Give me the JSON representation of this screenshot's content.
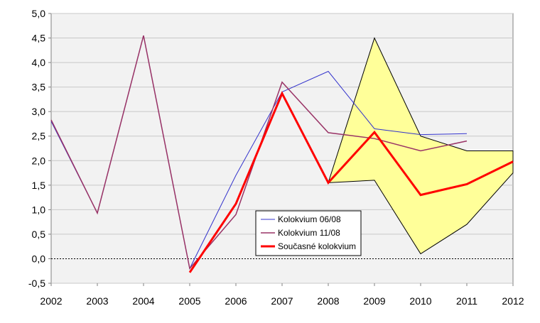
{
  "chart_data": {
    "type": "line",
    "title": "",
    "xlabel": "",
    "ylabel": "",
    "categories": [
      "2002",
      "2003",
      "2004",
      "2005",
      "2006",
      "2007",
      "2008",
      "2009",
      "2010",
      "2011",
      "2012"
    ],
    "ylim": [
      -0.5,
      5.0
    ],
    "ytick_step": 0.5,
    "decimal_separator": ",",
    "grid": "horizontal, plot area shaded light gray",
    "legend_position": "center-bottom, inside plot",
    "series": [
      {
        "name": "Kolokvium 06/08",
        "color": "#3333cc",
        "width": 1,
        "values": [
          2.8,
          0.93,
          4.55,
          -0.2,
          1.7,
          3.4,
          3.82,
          2.65,
          2.53,
          2.55,
          null
        ]
      },
      {
        "name": "Kolokvium 11/08",
        "color": "#993366",
        "width": 1.5,
        "values": [
          2.83,
          0.93,
          4.55,
          -0.2,
          0.9,
          3.6,
          2.57,
          2.45,
          2.2,
          2.4,
          null
        ]
      },
      {
        "name": "Současné kolokvium",
        "color": "#ff0000",
        "width": 3,
        "values": [
          null,
          null,
          null,
          -0.28,
          1.12,
          3.37,
          1.55,
          2.58,
          1.3,
          1.52,
          1.98
        ]
      }
    ],
    "band": {
      "fill": "#ffff99",
      "upper": [
        [
          2008,
          1.55
        ],
        [
          2009,
          4.5
        ],
        [
          2010,
          2.5
        ],
        [
          2011,
          2.2
        ],
        [
          2012,
          2.2
        ]
      ],
      "lower": [
        [
          2008,
          1.55
        ],
        [
          2009,
          1.6
        ],
        [
          2010,
          0.1
        ],
        [
          2011,
          0.7
        ],
        [
          2012,
          1.75
        ]
      ]
    },
    "zero_line": "dotted black at y=0"
  }
}
